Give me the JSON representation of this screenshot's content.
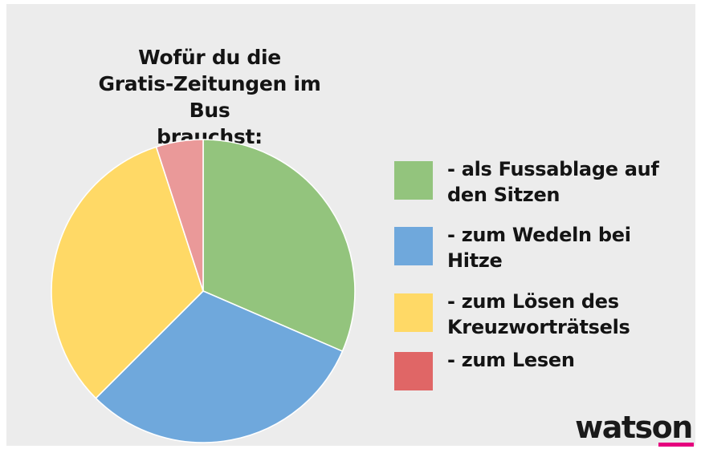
{
  "chart_data": {
    "type": "pie",
    "title": "Wofür du die\nGratis-Zeitungen im Bus\nbrauchst:",
    "start_angle_deg": 0,
    "direction": "clockwise",
    "legend_position": "right",
    "slices": [
      {
        "label": "- als Fussablage auf den Sitzen",
        "value": 31.5,
        "color": "#93c47d"
      },
      {
        "label": "- zum Wedeln bei Hitze",
        "value": 31.0,
        "color": "#6fa8dc"
      },
      {
        "label": "- zum Lösen des Kreuzworträtsels",
        "value": 32.5,
        "color": "#ffd966"
      },
      {
        "label": "- zum Lesen",
        "value": 5.0,
        "color": "#ea9999"
      }
    ],
    "legend": [
      {
        "lines": [
          "- als Fussablage auf",
          "den Sitzen"
        ],
        "color": "#93c47d"
      },
      {
        "lines": [
          "- zum Wedeln bei",
          "Hitze"
        ],
        "color": "#6fa8dc"
      },
      {
        "lines": [
          "- zum Lösen des",
          "Kreuzworträtsels"
        ],
        "color": "#ffd966"
      },
      {
        "lines": [
          "- zum Lesen"
        ],
        "color": "#e06666"
      }
    ]
  },
  "brand": {
    "logo_text": "watson",
    "accent_color": "#e5007e"
  }
}
